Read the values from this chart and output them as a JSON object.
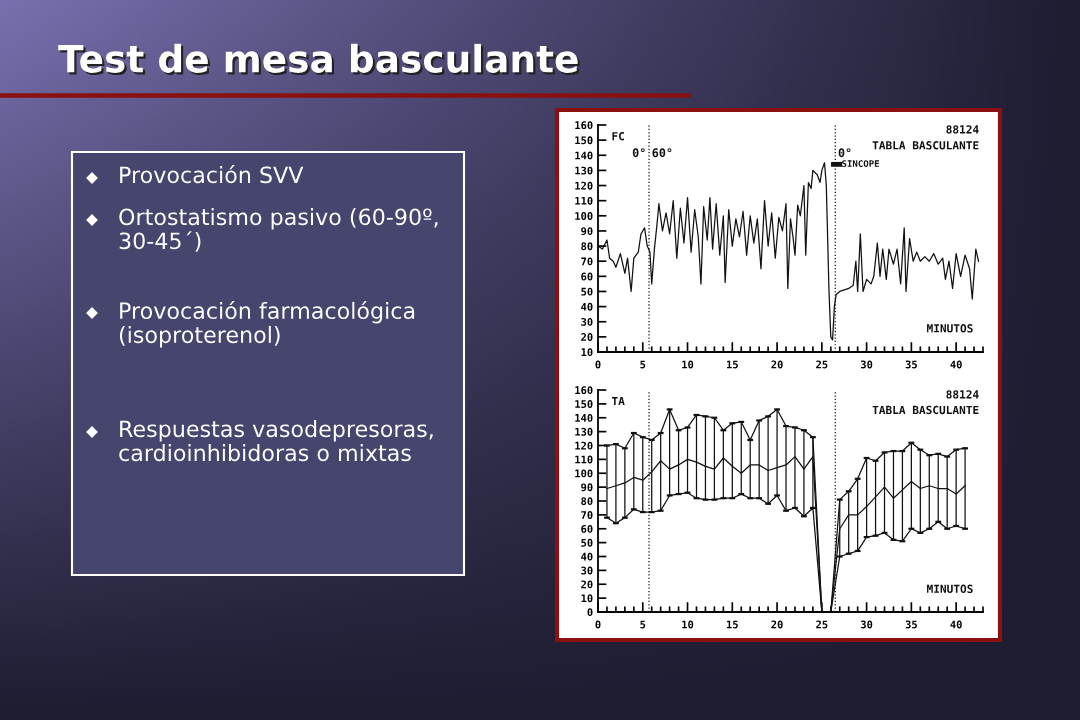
{
  "chart_data": [
    {
      "type": "line",
      "x": [
        0,
        0.5,
        1,
        1.3,
        1.7,
        2,
        2.5,
        3,
        3.3,
        3.7,
        4,
        4.5,
        4.8,
        5.2,
        5.5,
        5.8,
        6,
        6.3,
        6.6,
        6.8,
        7.2,
        7.6,
        8,
        8.4,
        8.8,
        9.2,
        9.6,
        10,
        10.4,
        10.8,
        11.2,
        11.5,
        11.8,
        12.2,
        12.5,
        12.8,
        13.2,
        13.6,
        14,
        14.2,
        14.6,
        15,
        15.4,
        15.8,
        16.2,
        16.6,
        17,
        17.4,
        17.8,
        18.2,
        18.6,
        19,
        19.4,
        19.8,
        20.2,
        20.6,
        21,
        21.2,
        21.5,
        21.8,
        22,
        22.3,
        22.6,
        23,
        23.2,
        23.5,
        23.8,
        24,
        24.5,
        24.8,
        25,
        25.3,
        25.5,
        25.8,
        26,
        26.2,
        26.4,
        26.6,
        27,
        28,
        28.5,
        28.8,
        29,
        29.3,
        29.6,
        30,
        30.5,
        30.8,
        31.2,
        31.5,
        31.8,
        32.2,
        32.5,
        33,
        33.4,
        33.8,
        34.2,
        34.4,
        34.8,
        35.2,
        35.6,
        36,
        36.5,
        37,
        37.5,
        38,
        38.5,
        38.8,
        39.2,
        39.6,
        40,
        40.5,
        41,
        41.5,
        41.8,
        42.2,
        42.5
      ],
      "series": [
        {
          "color": "#111111",
          "values": [
            80,
            78,
            84,
            72,
            70,
            66,
            75,
            62,
            72,
            50,
            72,
            76,
            88,
            92,
            80,
            76,
            55,
            78,
            95,
            108,
            90,
            102,
            88,
            110,
            72,
            105,
            82,
            112,
            76,
            104,
            86,
            55,
            106,
            84,
            112,
            78,
            108,
            74,
            100,
            56,
            104,
            80,
            98,
            86,
            103,
            74,
            100,
            82,
            98,
            65,
            110,
            80,
            102,
            72,
            99,
            90,
            108,
            52,
            98,
            85,
            74,
            107,
            100,
            120,
            74,
            122,
            118,
            130,
            127,
            122,
            130,
            135,
            120,
            50,
            20,
            18,
            40,
            48,
            50,
            52,
            54,
            70,
            50,
            88,
            50,
            58,
            55,
            60,
            82,
            60,
            78,
            58,
            78,
            68,
            78,
            55,
            92,
            50,
            85,
            70,
            76,
            70,
            73,
            70,
            75,
            68,
            72,
            58,
            70,
            52,
            75,
            60,
            74,
            65,
            45,
            78,
            70
          ]
        }
      ],
      "xlim": [
        0,
        43
      ],
      "ylim": [
        10,
        160
      ],
      "xticks": [
        0,
        5,
        10,
        15,
        20,
        25,
        30,
        35,
        40
      ],
      "yticks": [
        10,
        20,
        30,
        40,
        50,
        60,
        70,
        80,
        90,
        100,
        110,
        120,
        130,
        140,
        150,
        160
      ],
      "ref_lines": [
        {
          "axis": "x",
          "value": 5.7,
          "line_style": "dotted"
        },
        {
          "axis": "x",
          "value": 26.5,
          "line_style": "dotted"
        }
      ],
      "annotations": [
        "Test de mesa basculante",
        "Provocación SVV",
        "Ortostatismo pasivo (60-90º, 30-45´)",
        "Provocación farmacológica (isoproterenol)",
        "Respuestas vasodepresoras, cardioinhibidoras o mixtas",
        "FC",
        "88124",
        "TABLA BASCULANTE",
        "MINUTOS",
        "0°",
        "60°",
        "0°",
        {
          "text": "SINCOPE",
          "x": 27,
          "y": 134
        }
      ],
      "grid": false,
      "marker": "none",
      "line_style": "solid"
    },
    {
      "type": "line",
      "x": [
        1,
        2,
        3,
        4,
        5,
        6,
        7,
        8,
        9,
        10,
        11,
        12,
        13,
        14,
        15,
        16,
        17,
        18,
        19,
        20,
        21,
        22,
        23,
        24,
        25,
        26,
        27,
        28,
        29,
        30,
        31,
        32,
        33,
        34,
        35,
        36,
        37,
        38,
        39,
        40,
        41
      ],
      "series": [
        {
          "color": "#111111",
          "values": [
            120,
            121,
            118,
            129,
            126,
            124,
            129,
            146,
            131,
            133,
            142,
            141,
            140,
            131,
            136,
            137,
            124,
            138,
            141,
            146,
            134,
            133,
            131,
            126,
            0,
            0,
            81,
            87,
            96,
            111,
            109,
            115,
            116,
            116,
            122,
            117,
            113,
            114,
            112,
            117,
            118
          ]
        },
        {
          "color": "#111111",
          "values": [
            89,
            91,
            93,
            97,
            95,
            101,
            109,
            103,
            106,
            110,
            108,
            105,
            103,
            111,
            105,
            100,
            106,
            106,
            102,
            104,
            106,
            112,
            103,
            112,
            0,
            0,
            60,
            70,
            70,
            76,
            83,
            90,
            82,
            88,
            94,
            89,
            91,
            89,
            89,
            85,
            91
          ],
          "errors": [
            [
              68,
              120
            ],
            [
              64,
              121
            ],
            [
              68,
              118
            ],
            [
              74,
              129
            ],
            [
              72,
              126
            ],
            [
              72,
              124
            ],
            [
              73,
              129
            ],
            [
              84,
              146
            ],
            [
              85,
              131
            ],
            [
              86,
              133
            ],
            [
              82,
              142
            ],
            [
              81,
              141
            ],
            [
              81,
              140
            ],
            [
              82,
              131
            ],
            [
              82,
              136
            ],
            [
              85,
              137
            ],
            [
              82,
              124
            ],
            [
              82,
              138
            ],
            [
              78,
              141
            ],
            [
              84,
              146
            ],
            [
              73,
              134
            ],
            [
              75,
              133
            ],
            [
              69,
              131
            ],
            [
              75,
              126
            ],
            null,
            null,
            [
              40,
              81
            ],
            [
              42,
              87
            ],
            [
              44,
              96
            ],
            [
              54,
              111
            ],
            [
              55,
              109
            ],
            [
              57,
              115
            ],
            [
              52,
              116
            ],
            [
              51,
              116
            ],
            [
              60,
              122
            ],
            [
              57,
              117
            ],
            [
              60,
              113
            ],
            [
              65,
              114
            ],
            [
              60,
              112
            ],
            [
              62,
              117
            ],
            [
              60,
              118
            ]
          ]
        },
        {
          "color": "#111111",
          "values": [
            68,
            64,
            68,
            74,
            72,
            72,
            73,
            84,
            85,
            86,
            82,
            81,
            81,
            82,
            82,
            85,
            82,
            82,
            78,
            84,
            73,
            75,
            69,
            75,
            0,
            0,
            40,
            42,
            44,
            54,
            55,
            57,
            52,
            51,
            60,
            57,
            60,
            65,
            60,
            62,
            60
          ]
        }
      ],
      "xlim": [
        0,
        43
      ],
      "ylim": [
        0,
        160
      ],
      "xticks": [
        0,
        5,
        10,
        15,
        20,
        25,
        30,
        35,
        40
      ],
      "yticks": [
        0,
        10,
        20,
        30,
        40,
        50,
        60,
        70,
        80,
        90,
        100,
        110,
        120,
        130,
        140,
        150,
        160
      ],
      "ref_lines": [
        {
          "axis": "x",
          "value": 5.7,
          "line_style": "dotted"
        },
        {
          "axis": "x",
          "value": 26.5,
          "line_style": "dotted"
        }
      ],
      "annotations": [
        "TA",
        "88124",
        "TABLA BASCULANTE",
        "MINUTOS"
      ],
      "grid": false,
      "marker": "none",
      "line_style": "solid"
    }
  ]
}
